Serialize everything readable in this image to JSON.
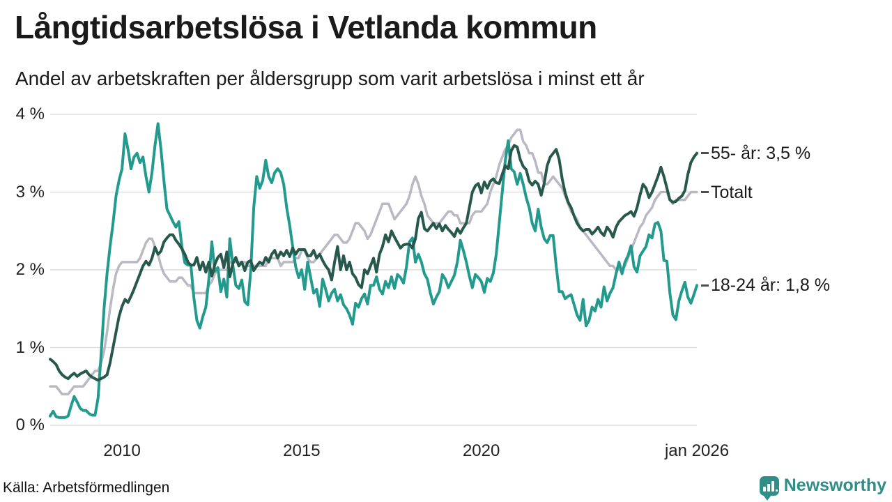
{
  "header": {
    "title": "Långtidsarbetslösa i Vetlanda kommun",
    "subtitle": "Andel av arbetskraften per åldersgrupp som varit arbetslösa i minst ett år"
  },
  "chart_data": {
    "type": "line",
    "title": "Långtidsarbetslösa i Vetlanda kommun",
    "x_range": [
      "jan 2008",
      "jan 2026"
    ],
    "x_unit": "month",
    "ylim": [
      0,
      4
    ],
    "grid": true,
    "legend_position": "right-end-labels",
    "colors": {
      "totalt": "#bab8c3",
      "age_18_24": "#229a8d",
      "age_55_plus": "#27584b",
      "gridline": "#dedede",
      "label_dash": "#4d4d4d"
    },
    "y_tick_labels": [
      "0 %",
      "1 %",
      "2 %",
      "3 %",
      "4 %"
    ],
    "x_ticks": [
      {
        "label": "2010",
        "month": 24
      },
      {
        "label": "2015",
        "month": 84
      },
      {
        "label": "2020",
        "month": 144
      },
      {
        "label": "jan 2026",
        "month": 216
      }
    ],
    "series": [
      {
        "name": "Totalt",
        "end_label": "Totalt",
        "color": "#bab8c3",
        "width": 3.5,
        "values": [
          0.5,
          0.5,
          0.5,
          0.45,
          0.4,
          0.4,
          0.4,
          0.45,
          0.5,
          0.5,
          0.5,
          0.5,
          0.55,
          0.6,
          0.65,
          0.7,
          0.7,
          0.8,
          0.95,
          1.2,
          1.5,
          1.75,
          1.95,
          2.05,
          2.1,
          2.1,
          2.1,
          2.1,
          2.1,
          2.1,
          2.15,
          2.25,
          2.35,
          2.4,
          2.4,
          2.3,
          2.2,
          2.05,
          1.95,
          1.9,
          1.85,
          1.85,
          1.85,
          1.9,
          1.9,
          1.85,
          1.8,
          1.8,
          1.7,
          1.7,
          1.7,
          1.7,
          1.7,
          1.8,
          1.85,
          1.95,
          2.0,
          2.0,
          2.0,
          2.0,
          2.1,
          2.1,
          2.1,
          2.1,
          2.1,
          2.1,
          2.05,
          2.05,
          2.05,
          2.05,
          2.05,
          2.05,
          2.05,
          2.15,
          2.15,
          2.15,
          2.15,
          2.05,
          2.1,
          2.1,
          2.1,
          2.1,
          2.15,
          2.15,
          2.25,
          2.25,
          2.15,
          2.1,
          2.1,
          2.15,
          2.2,
          2.25,
          2.3,
          2.35,
          2.4,
          2.45,
          2.45,
          2.4,
          2.35,
          2.35,
          2.4,
          2.5,
          2.6,
          2.6,
          2.55,
          2.5,
          2.4,
          2.45,
          2.55,
          2.65,
          2.75,
          2.85,
          2.85,
          2.85,
          2.75,
          2.65,
          2.7,
          2.75,
          2.8,
          2.85,
          2.95,
          3.1,
          3.2,
          3.1,
          2.95,
          2.85,
          2.7,
          2.65,
          2.6,
          2.6,
          2.6,
          2.65,
          2.7,
          2.75,
          2.75,
          2.7,
          2.7,
          2.6,
          2.6,
          2.6,
          2.6,
          2.7,
          2.75,
          2.75,
          2.75,
          2.8,
          2.85,
          3.0,
          3.1,
          3.2,
          3.35,
          3.45,
          3.55,
          3.6,
          3.7,
          3.75,
          3.8,
          3.8,
          3.65,
          3.6,
          3.5,
          3.5,
          3.4,
          3.25,
          3.25,
          3.1,
          3.1,
          3.15,
          3.2,
          3.15,
          3.1,
          3.05,
          2.95,
          2.85,
          2.75,
          2.7,
          2.65,
          2.55,
          2.5,
          2.45,
          2.4,
          2.35,
          2.3,
          2.25,
          2.2,
          2.15,
          2.1,
          2.05,
          2.05,
          2.0,
          2.0,
          2.0,
          2.05,
          2.15,
          2.25,
          2.35,
          2.45,
          2.55,
          2.6,
          2.7,
          2.75,
          2.8,
          2.9,
          2.95,
          3.0,
          3.0,
          3.0,
          2.9,
          2.85,
          2.9,
          2.9,
          2.9,
          2.9,
          2.95,
          3.0,
          3.0,
          3.0
        ]
      },
      {
        "name": "18-24 år",
        "end_label": "18-24 år: 1,8 %",
        "color": "#229a8d",
        "width": 4,
        "values": [
          0.12,
          0.18,
          0.11,
          0.1,
          0.1,
          0.1,
          0.12,
          0.25,
          0.37,
          0.3,
          0.22,
          0.19,
          0.19,
          0.15,
          0.13,
          0.13,
          0.35,
          0.9,
          1.5,
          1.95,
          2.3,
          2.6,
          2.95,
          3.15,
          3.3,
          3.75,
          3.55,
          3.3,
          3.45,
          3.5,
          3.38,
          3.45,
          3.2,
          3.0,
          3.25,
          3.6,
          3.88,
          3.55,
          3.14,
          2.78,
          2.7,
          2.62,
          2.55,
          2.62,
          2.3,
          2.09,
          2.06,
          2.06,
          1.64,
          1.35,
          1.25,
          1.4,
          1.52,
          1.88,
          2.36,
          1.98,
          2.03,
          1.72,
          1.88,
          1.65,
          2.4,
          2.06,
          1.8,
          1.76,
          1.87,
          1.59,
          1.55,
          2.0,
          2.8,
          3.2,
          3.05,
          3.15,
          3.41,
          3.2,
          3.12,
          3.25,
          3.3,
          3.25,
          3.1,
          2.8,
          2.57,
          2.3,
          2.04,
          1.9,
          2.0,
          1.75,
          2.1,
          1.9,
          1.7,
          1.75,
          1.53,
          1.88,
          1.75,
          1.6,
          1.7,
          1.75,
          1.6,
          1.68,
          1.55,
          1.5,
          1.42,
          1.3,
          1.57,
          1.52,
          1.63,
          1.69,
          1.56,
          1.8,
          1.8,
          1.91,
          1.75,
          1.69,
          1.85,
          1.77,
          1.91,
          1.76,
          1.94,
          1.9,
          1.83,
          2.04,
          2.36,
          2.41,
          2.1,
          2.2,
          2.1,
          1.95,
          1.88,
          1.7,
          1.56,
          1.65,
          1.72,
          1.94,
          1.88,
          1.77,
          1.85,
          1.93,
          2.1,
          2.38,
          2.25,
          2.1,
          1.92,
          1.77,
          1.94,
          1.9,
          1.85,
          1.71,
          1.89,
          1.85,
          1.96,
          2.2,
          2.6,
          3.0,
          3.4,
          3.66,
          3.3,
          3.26,
          3.1,
          3.24,
          3.1,
          2.93,
          2.8,
          2.6,
          2.5,
          2.78,
          2.55,
          2.4,
          2.35,
          2.44,
          2.44,
          2.05,
          1.72,
          1.72,
          1.63,
          1.66,
          1.68,
          1.55,
          1.42,
          1.35,
          1.62,
          1.28,
          1.35,
          1.52,
          1.47,
          1.62,
          1.52,
          1.78,
          1.6,
          1.7,
          1.77,
          1.95,
          2.1,
          1.95,
          2.1,
          2.18,
          2.31,
          2.04,
          1.97,
          2.18,
          2.24,
          2.3,
          2.45,
          2.41,
          2.59,
          2.61,
          2.5,
          2.12,
          2.11,
          1.7,
          1.42,
          1.36,
          1.6,
          1.73,
          1.84,
          1.65,
          1.57,
          1.68,
          1.8
        ]
      },
      {
        "name": "55- år",
        "end_label": "55- år: 3,5 %",
        "color": "#27584b",
        "width": 4,
        "values": [
          0.85,
          0.82,
          0.78,
          0.7,
          0.65,
          0.62,
          0.6,
          0.64,
          0.67,
          0.63,
          0.66,
          0.68,
          0.7,
          0.65,
          0.62,
          0.6,
          0.58,
          0.6,
          0.62,
          0.65,
          0.8,
          1.0,
          1.2,
          1.4,
          1.53,
          1.62,
          1.58,
          1.66,
          1.75,
          1.85,
          1.95,
          2.05,
          2.11,
          2.06,
          2.15,
          2.29,
          2.2,
          2.24,
          2.36,
          2.41,
          2.45,
          2.45,
          2.38,
          2.33,
          2.27,
          2.2,
          2.1,
          2.06,
          2.06,
          2.16,
          2.0,
          2.1,
          1.97,
          2.1,
          1.92,
          2.07,
          2.16,
          2.2,
          2.03,
          2.23,
          1.91,
          2.08,
          2.16,
          2.05,
          2.1,
          1.99,
          2.1,
          2.12,
          1.99,
          2.05,
          2.1,
          2.07,
          2.16,
          2.1,
          2.2,
          2.25,
          2.15,
          2.23,
          2.18,
          2.25,
          2.17,
          2.28,
          2.2,
          2.26,
          2.26,
          2.26,
          2.18,
          2.18,
          2.25,
          2.15,
          2.2,
          2.12,
          2.05,
          2.0,
          1.87,
          2.1,
          2.3,
          2.0,
          2.18,
          2.0,
          2.1,
          1.95,
          1.9,
          1.81,
          1.77,
          2.0,
          1.95,
          2.05,
          2.15,
          1.97,
          2.2,
          2.3,
          2.45,
          2.36,
          2.5,
          2.42,
          2.35,
          2.28,
          2.32,
          2.33,
          2.33,
          2.28,
          2.4,
          2.66,
          2.74,
          2.53,
          2.5,
          2.55,
          2.6,
          2.53,
          2.59,
          2.5,
          2.57,
          2.52,
          2.48,
          2.43,
          2.53,
          2.47,
          2.54,
          2.6,
          2.8,
          3.0,
          3.08,
          3.11,
          2.99,
          3.13,
          3.05,
          3.14,
          3.17,
          3.12,
          3.11,
          3.23,
          3.34,
          3.3,
          3.53,
          3.6,
          3.58,
          3.42,
          3.33,
          3.29,
          3.14,
          3.09,
          3.14,
          3.1,
          2.96,
          3.11,
          3.34,
          3.45,
          3.5,
          3.55,
          3.42,
          3.17,
          2.99,
          2.87,
          2.8,
          2.69,
          2.6,
          2.54,
          2.5,
          2.52,
          2.52,
          2.46,
          2.5,
          2.55,
          2.48,
          2.44,
          2.55,
          2.5,
          2.42,
          2.55,
          2.62,
          2.66,
          2.7,
          2.72,
          2.75,
          2.69,
          2.8,
          2.96,
          3.1,
          3.05,
          2.93,
          3.0,
          3.1,
          3.2,
          3.32,
          3.2,
          3.05,
          2.9,
          2.87,
          2.88,
          2.92,
          2.95,
          3.02,
          3.23,
          3.38,
          3.45,
          3.5
        ]
      }
    ]
  },
  "footer": {
    "source": "Källa: Arbetsförmedlingen",
    "brand": "Newsworthy"
  }
}
